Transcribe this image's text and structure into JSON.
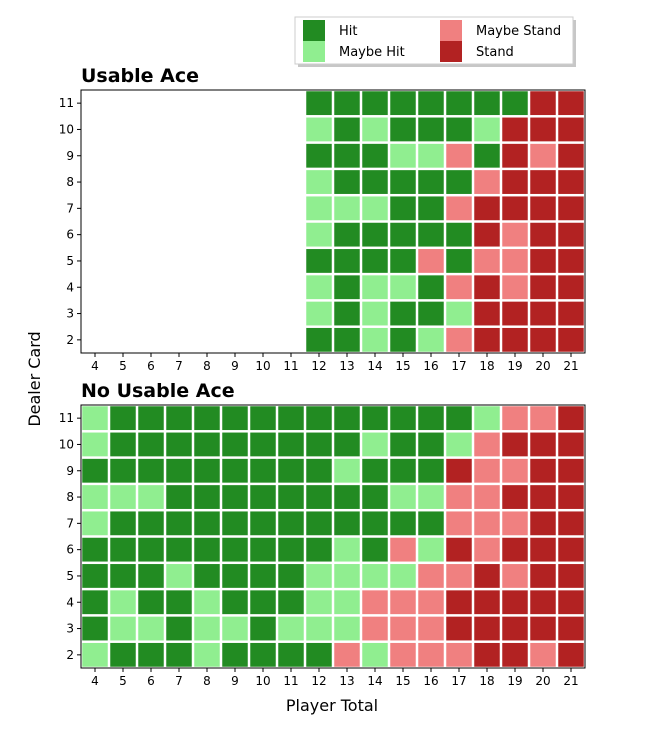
{
  "legend": {
    "placement": "top-right",
    "entries": [
      {
        "label": "Hit",
        "color": "#228b22"
      },
      {
        "label": "Maybe Hit",
        "color": "#90ee90"
      },
      {
        "label": "Maybe Stand",
        "color": "#f08080"
      },
      {
        "label": "Stand",
        "color": "#b22222"
      }
    ]
  },
  "axes": {
    "xlabel": "Player Total",
    "ylabel": "Dealer Card"
  },
  "chart_data": [
    {
      "type": "heatmap",
      "title": "Usable Ace",
      "x": [
        4,
        5,
        6,
        7,
        8,
        9,
        10,
        11,
        12,
        13,
        14,
        15,
        16,
        17,
        18,
        19,
        20,
        21
      ],
      "y": [
        11,
        10,
        9,
        8,
        7,
        6,
        5,
        4,
        3,
        2
      ],
      "value_codes": {
        "H": "Hit",
        "h": "Maybe Hit",
        "s": "Maybe Stand",
        "S": "Stand",
        ".": "empty"
      },
      "rows": [
        "........HHHHHHHHSS",
        "........hHhHHHhSSS",
        "........HHHhhsHSsS",
        "........hHHHHHsSSS",
        "........hhhHHsSSSS",
        "........hHHHHHSsSS",
        "........HHHHsHssSS",
        "........hHhhHsSsSS",
        "........hHhHHhSSSS",
        "........HHhHhsSSSS"
      ]
    },
    {
      "type": "heatmap",
      "title": "No Usable Ace",
      "x": [
        4,
        5,
        6,
        7,
        8,
        9,
        10,
        11,
        12,
        13,
        14,
        15,
        16,
        17,
        18,
        19,
        20,
        21
      ],
      "y": [
        11,
        10,
        9,
        8,
        7,
        6,
        5,
        4,
        3,
        2
      ],
      "value_codes": {
        "H": "Hit",
        "h": "Maybe Hit",
        "s": "Maybe Stand",
        "S": "Stand",
        ".": "empty"
      },
      "rows": [
        "hHHHHHHHHHHHHHhssS",
        "hHHHHHHHHHhHHhsSSS",
        "HHHHHHHHHhHHHSssSS",
        "hhhHHHHHHHHhhssSSS",
        "hHHHHHHHHHHHHsssSS",
        "HHHHHHHHHhHshSsSSS",
        "HHHhHHHHhhhhssSsSS",
        "HhHHhHHHhhsssSSSSS",
        "HhhHhhHhhhsssSSSSS",
        "hHHHhHHHHshsssSSsS"
      ]
    }
  ]
}
